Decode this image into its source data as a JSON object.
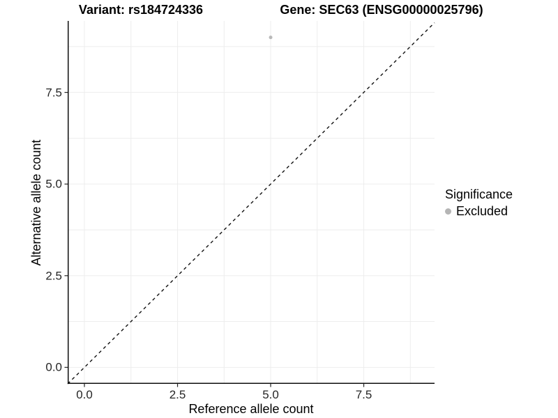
{
  "chart_data": {
    "type": "scatter",
    "titles": {
      "left": "Variant: rs184724336",
      "right": "Gene: SEC63 (ENSG00000025796)"
    },
    "xlabel": "Reference allele count",
    "ylabel": "Alternative allele count",
    "xlim": [
      -0.45,
      9.4
    ],
    "ylim": [
      -0.45,
      9.45
    ],
    "x_ticks": [
      0,
      2.5,
      5,
      7.5
    ],
    "y_ticks": [
      0,
      2.5,
      5,
      7.5
    ],
    "x_tick_labels": [
      "0.0",
      "2.5",
      "5.0",
      "7.5"
    ],
    "y_tick_labels": [
      "0.0",
      "2.5",
      "5.0",
      "7.5"
    ],
    "minor_step": 1.25,
    "grid": true,
    "identity_line": {
      "style": "dashed",
      "color": "#111111",
      "dash": "4.5 4.5",
      "width": 1.4
    },
    "series": [
      {
        "name": "Excluded",
        "color": "#b9b9b9",
        "points": [
          {
            "x": 5,
            "y": 9
          }
        ],
        "point_radius": 2.5
      }
    ],
    "legend": {
      "title": "Significance",
      "position": "right",
      "items": [
        {
          "label": "Excluded",
          "color": "#b5b5b5"
        }
      ]
    },
    "colors": {
      "background": "#ffffff",
      "grid": "#ededed",
      "axis_line": "#0d0d0d",
      "tick_mark": "#222222",
      "tick_label": "#262626"
    }
  }
}
